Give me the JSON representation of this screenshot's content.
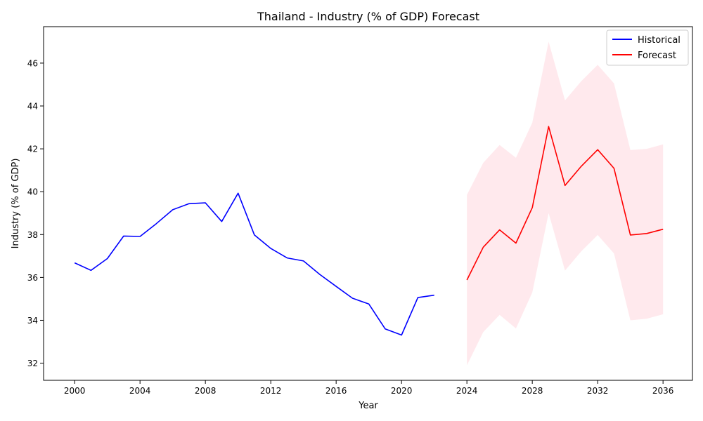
{
  "chart_data": {
    "type": "line",
    "title": "Thailand - Industry (% of GDP) Forecast",
    "xlabel": "Year",
    "ylabel": "Industry (% of GDP)",
    "xlim": [
      1998.1,
      2037.8
    ],
    "ylim": [
      31.2,
      47.7
    ],
    "xticks": [
      2000,
      2004,
      2008,
      2012,
      2016,
      2020,
      2024,
      2028,
      2032,
      2036
    ],
    "yticks": [
      32,
      34,
      36,
      38,
      40,
      42,
      44,
      46
    ],
    "grid": false,
    "legend_position": "top-right",
    "series": [
      {
        "name": "Historical",
        "color": "#0000ff",
        "x": [
          2000,
          2001,
          2002,
          2003,
          2004,
          2005,
          2006,
          2007,
          2008,
          2009,
          2010,
          2011,
          2012,
          2013,
          2014,
          2015,
          2016,
          2017,
          2018,
          2019,
          2020,
          2021,
          2022
        ],
        "y": [
          36.68,
          36.33,
          36.88,
          37.93,
          37.91,
          38.51,
          39.16,
          39.44,
          39.48,
          38.61,
          39.93,
          37.98,
          37.35,
          36.91,
          36.77,
          36.14,
          35.58,
          35.03,
          34.76,
          33.6,
          33.31,
          35.06,
          35.17
        ]
      },
      {
        "name": "Forecast",
        "color": "#ff0000",
        "x": [
          2024,
          2025,
          2026,
          2027,
          2028,
          2029,
          2030,
          2031,
          2032,
          2033,
          2034,
          2035,
          2036
        ],
        "y": [
          35.88,
          37.41,
          38.22,
          37.6,
          39.26,
          43.04,
          40.29,
          41.19,
          41.96,
          41.09,
          37.98,
          38.05,
          38.25
        ]
      }
    ],
    "band": {
      "color": "#ffc0cb",
      "opacity": 0.35,
      "x": [
        2024,
        2025,
        2026,
        2027,
        2028,
        2029,
        2030,
        2031,
        2032,
        2033,
        2034,
        2035,
        2036
      ],
      "lower": [
        31.9,
        33.45,
        34.25,
        33.62,
        35.3,
        39.0,
        36.32,
        37.22,
        37.98,
        37.12,
        34.0,
        34.07,
        34.28
      ],
      "upper": [
        39.85,
        41.35,
        42.18,
        41.58,
        43.22,
        47.0,
        44.26,
        45.16,
        45.92,
        45.05,
        41.94,
        42.0,
        42.21
      ]
    }
  }
}
